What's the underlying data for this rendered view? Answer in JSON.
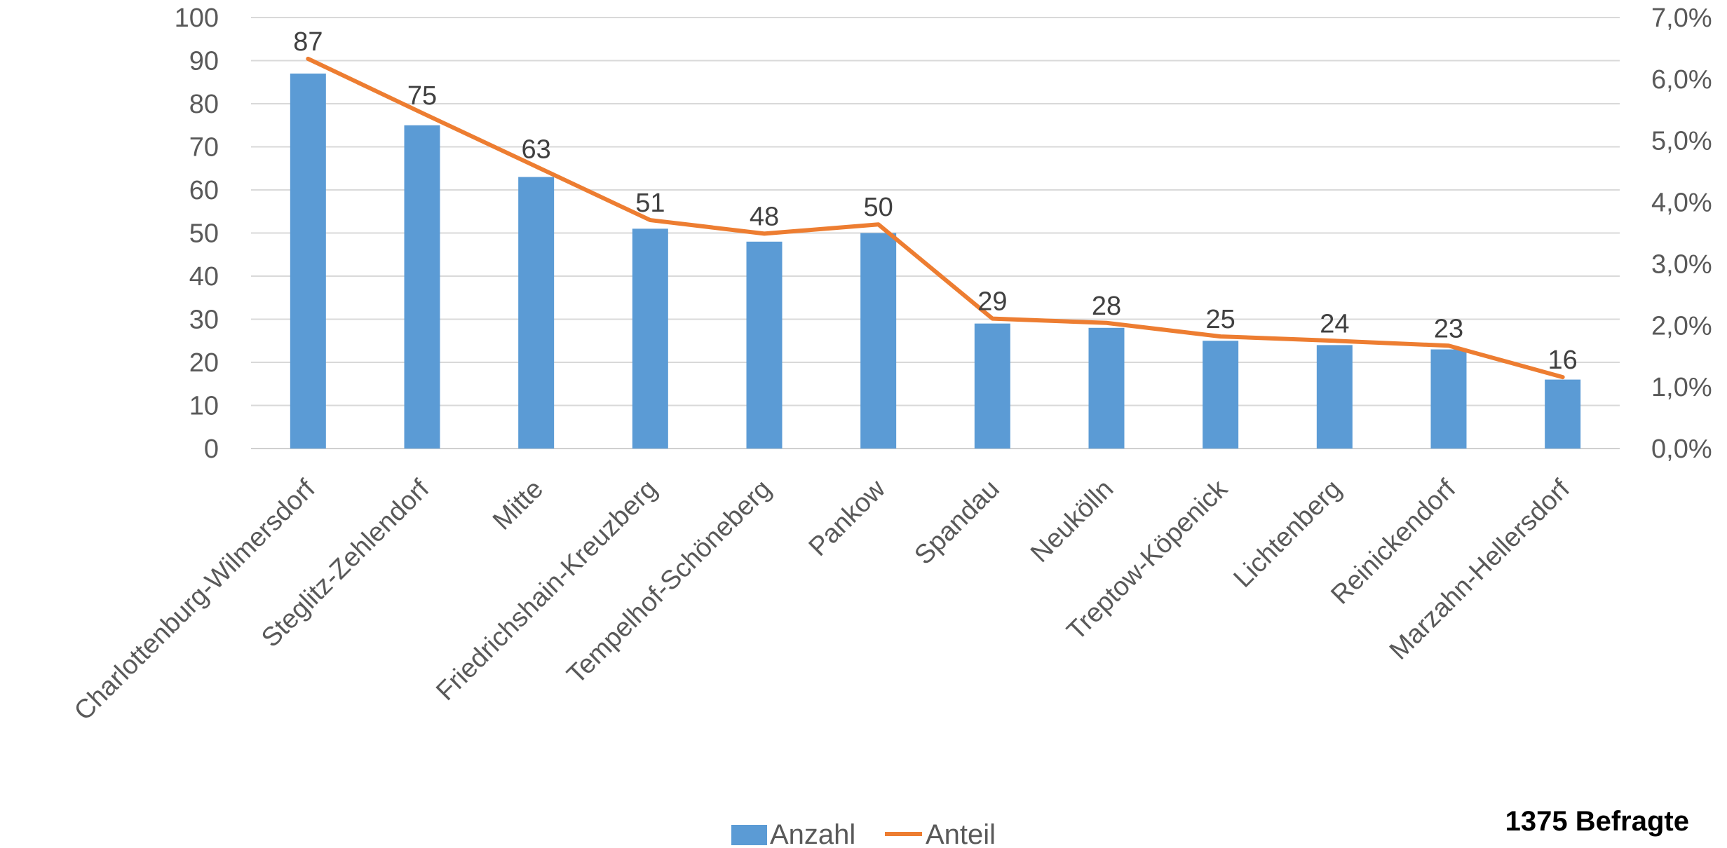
{
  "chart_data": {
    "type": "bar",
    "categories": [
      "Charlottenburg-Wilmersdorf",
      "Steglitz-Zehlendorf",
      "Mitte",
      "Friedrichshain-Kreuzberg",
      "Tempelhof-Schöneberg",
      "Pankow",
      "Spandau",
      "Neukölln",
      "Treptow-Köpenick",
      "Lichtenberg",
      "Reinickendorf",
      "Marzahn-Hellersdorf"
    ],
    "series": [
      {
        "name": "Anzahl",
        "type": "bar",
        "axis": "left",
        "color": "#5b9bd5",
        "values": [
          87,
          75,
          63,
          51,
          48,
          50,
          29,
          28,
          25,
          24,
          23,
          16
        ]
      },
      {
        "name": "Anteil",
        "type": "line",
        "axis": "right",
        "color": "#ed7d31",
        "values": [
          6.33,
          5.45,
          4.58,
          3.71,
          3.49,
          3.64,
          2.11,
          2.04,
          1.82,
          1.75,
          1.67,
          1.16
        ]
      }
    ],
    "data_labels": [
      "87",
      "75",
      "63",
      "51",
      "48",
      "50",
      "29",
      "28",
      "25",
      "24",
      "23",
      "16"
    ],
    "y_left": {
      "min": 0,
      "max": 100,
      "ticks": [
        "0",
        "10",
        "20",
        "30",
        "40",
        "50",
        "60",
        "70",
        "80",
        "90",
        "100"
      ]
    },
    "y_right": {
      "min": 0,
      "max": 7,
      "ticks": [
        "0,0%",
        "1,0%",
        "2,0%",
        "3,0%",
        "4,0%",
        "5,0%",
        "6,0%",
        "7,0%"
      ]
    },
    "grid": true,
    "legend_position": "bottom",
    "title": "",
    "xlabel": "",
    "ylabel": ""
  },
  "note": "1375 Befragte"
}
